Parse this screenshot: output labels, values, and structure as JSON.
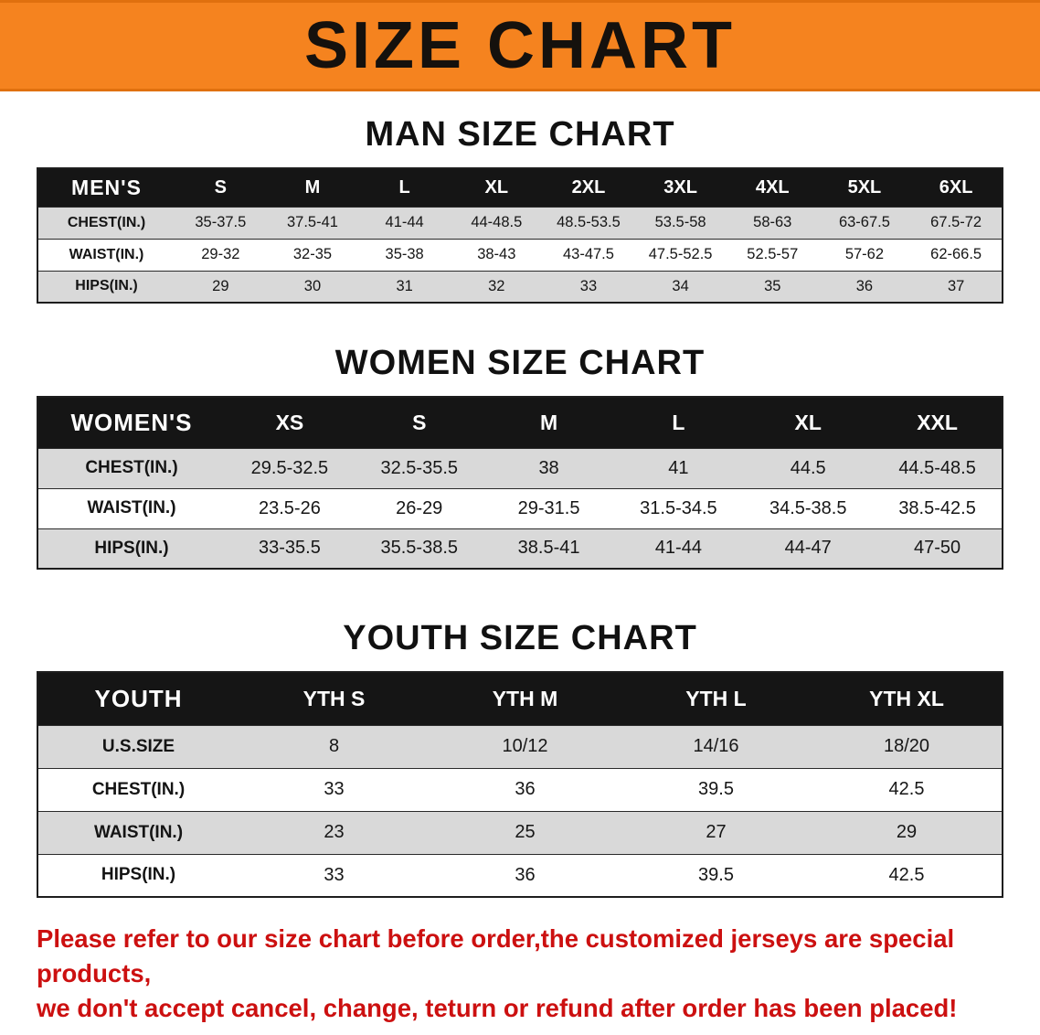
{
  "colors": {
    "banner_orange": "#f5831f",
    "table_header_black": "#151515",
    "row_shade_gray": "#d9d9d9",
    "disclaimer_red": "#cc1010"
  },
  "banner": {
    "title": "SIZE CHART"
  },
  "sections": [
    {
      "heading": "MAN SIZE CHART",
      "table": {
        "header": [
          "MEN'S",
          "S",
          "M",
          "L",
          "XL",
          "2XL",
          "3XL",
          "4XL",
          "5XL",
          "6XL"
        ],
        "rows": [
          [
            "CHEST(IN.)",
            "35-37.5",
            "37.5-41",
            "41-44",
            "44-48.5",
            "48.5-53.5",
            "53.5-58",
            "58-63",
            "63-67.5",
            "67.5-72"
          ],
          [
            "WAIST(IN.)",
            "29-32",
            "32-35",
            "35-38",
            "38-43",
            "43-47.5",
            "47.5-52.5",
            "52.5-57",
            "57-62",
            "62-66.5"
          ],
          [
            "HIPS(IN.)",
            "29",
            "30",
            "31",
            "32",
            "33",
            "34",
            "35",
            "36",
            "37"
          ]
        ]
      }
    },
    {
      "heading": "WOMEN SIZE CHART",
      "table": {
        "header": [
          "WOMEN'S",
          "XS",
          "S",
          "M",
          "L",
          "XL",
          "XXL"
        ],
        "rows": [
          [
            "CHEST(IN.)",
            "29.5-32.5",
            "32.5-35.5",
            "38",
            "41",
            "44.5",
            "44.5-48.5"
          ],
          [
            "WAIST(IN.)",
            "23.5-26",
            "26-29",
            "29-31.5",
            "31.5-34.5",
            "34.5-38.5",
            "38.5-42.5"
          ],
          [
            "HIPS(IN.)",
            "33-35.5",
            "35.5-38.5",
            "38.5-41",
            "41-44",
            "44-47",
            "47-50"
          ]
        ]
      }
    },
    {
      "heading": "YOUTH SIZE CHART",
      "table": {
        "header": [
          "YOUTH",
          "YTH S",
          "YTH M",
          "YTH L",
          "YTH XL"
        ],
        "rows": [
          [
            "U.S.SIZE",
            "8",
            "10/12",
            "14/16",
            "18/20"
          ],
          [
            "CHEST(IN.)",
            "33",
            "36",
            "39.5",
            "42.5"
          ],
          [
            "WAIST(IN.)",
            "23",
            "25",
            "27",
            "29"
          ],
          [
            "HIPS(IN.)",
            "33",
            "36",
            "39.5",
            "42.5"
          ]
        ]
      }
    }
  ],
  "disclaimer": {
    "line1": "Please refer to our size chart before order,the customized jerseys are special products,",
    "line2": "we don't accept cancel, change, teturn or refund after order has been placed!"
  }
}
